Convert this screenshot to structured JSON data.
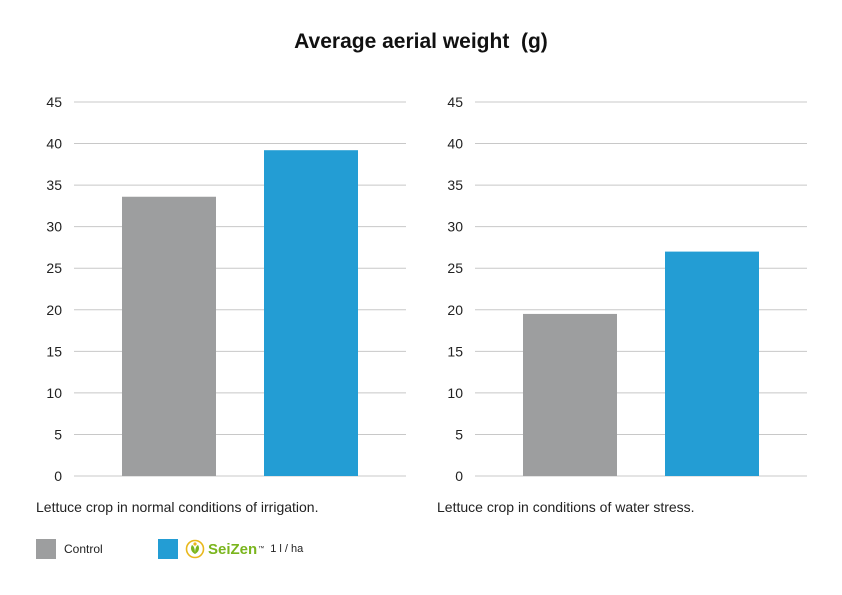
{
  "title": "Average aerial weight  (g)",
  "colors": {
    "control": "#9d9e9f",
    "seizen": "#239dd4",
    "grid": "#c8c8c8",
    "logo_green": "#7ab51d",
    "logo_yellow": "#e9b81c"
  },
  "chart_data": [
    {
      "type": "bar",
      "categories": [
        "Control",
        "SeiZen"
      ],
      "values": [
        33.6,
        39.2
      ],
      "ylim": [
        0,
        45
      ],
      "yticks": [
        0,
        5,
        10,
        15,
        20,
        25,
        30,
        35,
        40,
        45
      ],
      "grid": true,
      "caption": "Lettuce crop in normal conditions of irrigation."
    },
    {
      "type": "bar",
      "categories": [
        "Control",
        "SeiZen"
      ],
      "values": [
        19.5,
        27
      ],
      "ylim": [
        0,
        45
      ],
      "yticks": [
        0,
        5,
        10,
        15,
        20,
        25,
        30,
        35,
        40,
        45
      ],
      "grid": true,
      "caption": "Lettuce crop in conditions of water stress."
    }
  ],
  "legend": {
    "control_label": "Control",
    "seizen_name": "SeiZen",
    "seizen_tm": "™",
    "seizen_dose": "1 l / ha",
    "logo_icon": "leaf-logo-icon"
  }
}
